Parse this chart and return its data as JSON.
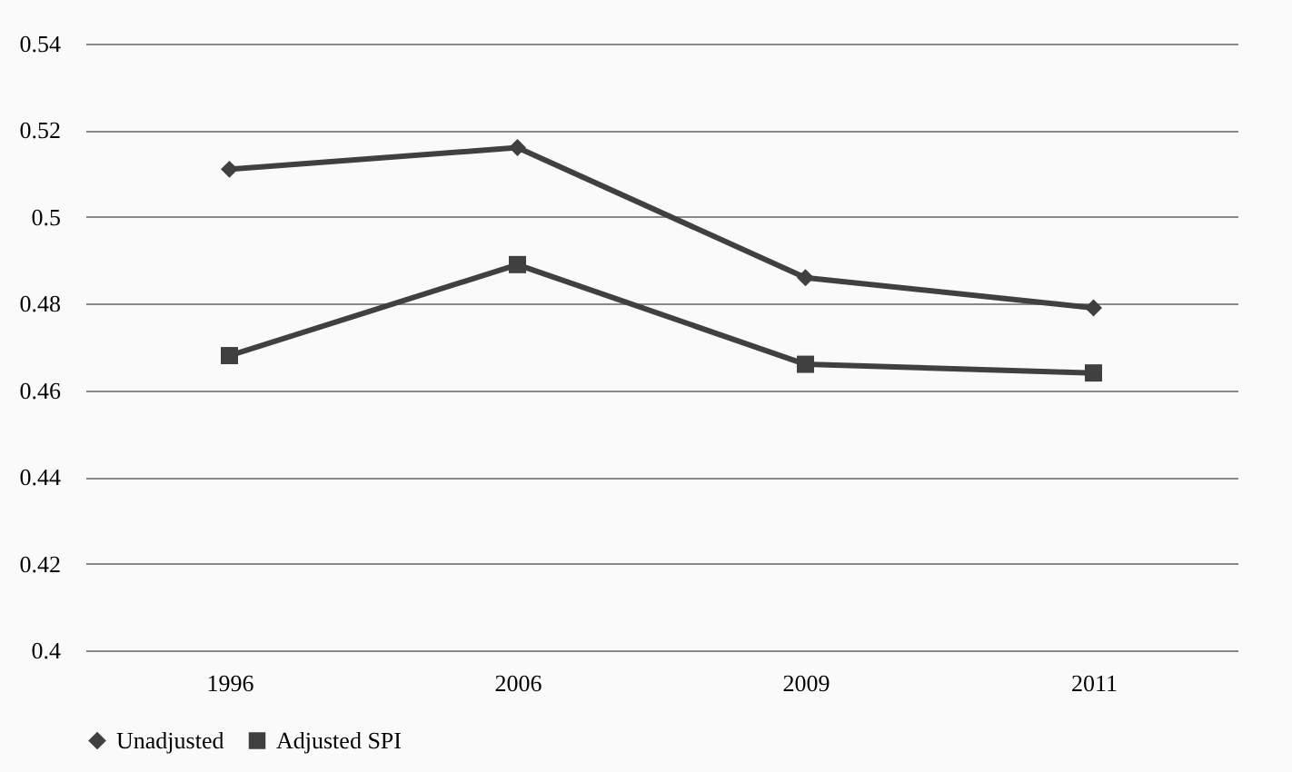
{
  "chart_data": {
    "type": "line",
    "categories": [
      "1996",
      "2006",
      "2009",
      "2011"
    ],
    "series": [
      {
        "name": "Unadjusted",
        "color": "#404040",
        "marker": "diamond",
        "values": [
          0.511,
          0.516,
          0.486,
          0.479
        ]
      },
      {
        "name": "Adjusted SPI",
        "color": "#404040",
        "marker": "square",
        "values": [
          0.468,
          0.489,
          0.466,
          0.464
        ]
      }
    ],
    "ylim": [
      0.4,
      0.54
    ],
    "yticks": [
      0.4,
      0.42,
      0.44,
      0.46,
      0.48,
      0.5,
      0.52,
      0.54
    ],
    "grid": "y",
    "legend": "bottom",
    "line_style": "solid"
  }
}
